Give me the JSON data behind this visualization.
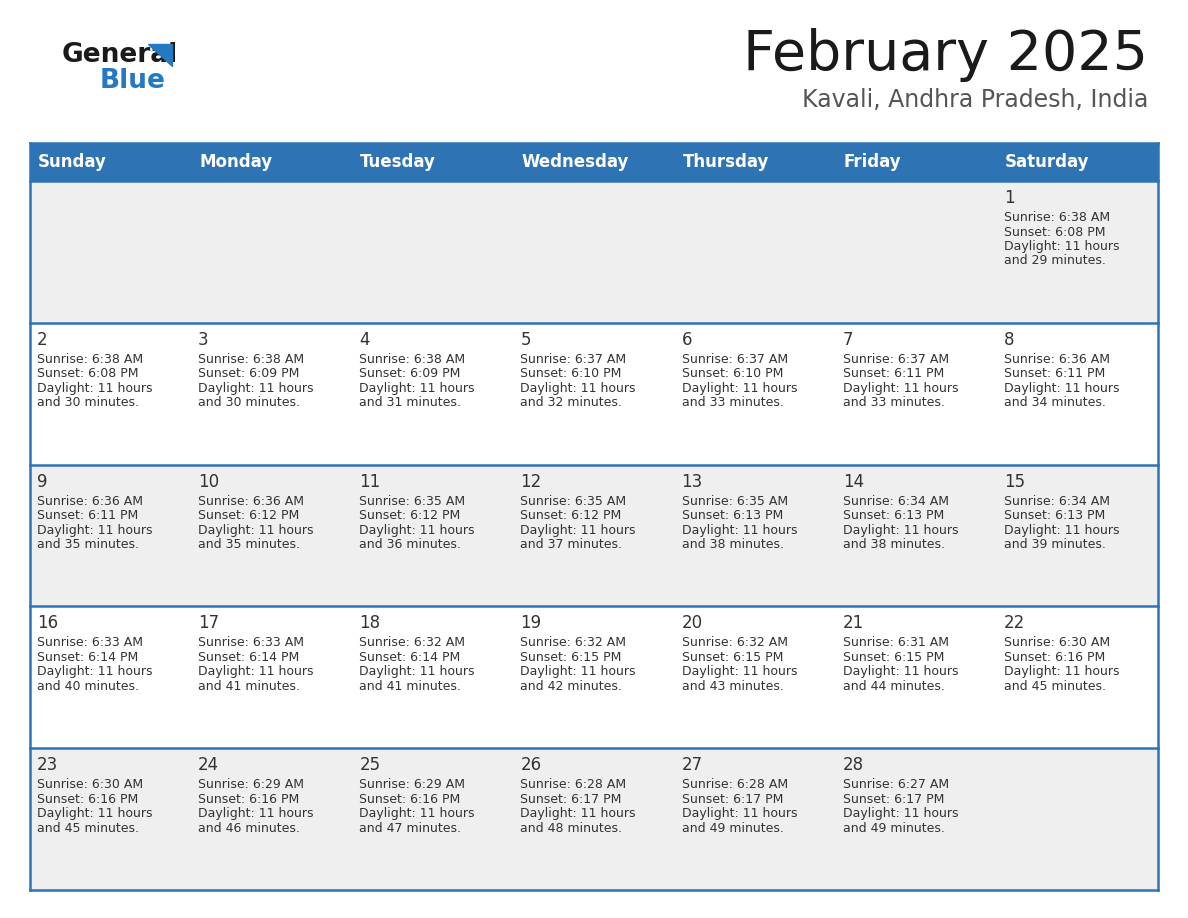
{
  "title": "February 2025",
  "subtitle": "Kavali, Andhra Pradesh, India",
  "header_bg": "#2E74B5",
  "header_text_color": "#FFFFFF",
  "day_names": [
    "Sunday",
    "Monday",
    "Tuesday",
    "Wednesday",
    "Thursday",
    "Friday",
    "Saturday"
  ],
  "cell_bg_odd": "#EFEFEF",
  "cell_bg_even": "#FFFFFF",
  "cell_text_color": "#333333",
  "grid_line_color": "#2E74B5",
  "title_color": "#1a1a1a",
  "subtitle_color": "#555555",
  "logo_general_color": "#1a1a1a",
  "logo_blue_color": "#2479C2",
  "calendar_data": [
    {
      "day": 1,
      "col": 6,
      "row": 0,
      "sunrise": "6:38 AM",
      "sunset": "6:08 PM",
      "daylight": "11 hours and 29 minutes."
    },
    {
      "day": 2,
      "col": 0,
      "row": 1,
      "sunrise": "6:38 AM",
      "sunset": "6:08 PM",
      "daylight": "11 hours and 30 minutes."
    },
    {
      "day": 3,
      "col": 1,
      "row": 1,
      "sunrise": "6:38 AM",
      "sunset": "6:09 PM",
      "daylight": "11 hours and 30 minutes."
    },
    {
      "day": 4,
      "col": 2,
      "row": 1,
      "sunrise": "6:38 AM",
      "sunset": "6:09 PM",
      "daylight": "11 hours and 31 minutes."
    },
    {
      "day": 5,
      "col": 3,
      "row": 1,
      "sunrise": "6:37 AM",
      "sunset": "6:10 PM",
      "daylight": "11 hours and 32 minutes."
    },
    {
      "day": 6,
      "col": 4,
      "row": 1,
      "sunrise": "6:37 AM",
      "sunset": "6:10 PM",
      "daylight": "11 hours and 33 minutes."
    },
    {
      "day": 7,
      "col": 5,
      "row": 1,
      "sunrise": "6:37 AM",
      "sunset": "6:11 PM",
      "daylight": "11 hours and 33 minutes."
    },
    {
      "day": 8,
      "col": 6,
      "row": 1,
      "sunrise": "6:36 AM",
      "sunset": "6:11 PM",
      "daylight": "11 hours and 34 minutes."
    },
    {
      "day": 9,
      "col": 0,
      "row": 2,
      "sunrise": "6:36 AM",
      "sunset": "6:11 PM",
      "daylight": "11 hours and 35 minutes."
    },
    {
      "day": 10,
      "col": 1,
      "row": 2,
      "sunrise": "6:36 AM",
      "sunset": "6:12 PM",
      "daylight": "11 hours and 35 minutes."
    },
    {
      "day": 11,
      "col": 2,
      "row": 2,
      "sunrise": "6:35 AM",
      "sunset": "6:12 PM",
      "daylight": "11 hours and 36 minutes."
    },
    {
      "day": 12,
      "col": 3,
      "row": 2,
      "sunrise": "6:35 AM",
      "sunset": "6:12 PM",
      "daylight": "11 hours and 37 minutes."
    },
    {
      "day": 13,
      "col": 4,
      "row": 2,
      "sunrise": "6:35 AM",
      "sunset": "6:13 PM",
      "daylight": "11 hours and 38 minutes."
    },
    {
      "day": 14,
      "col": 5,
      "row": 2,
      "sunrise": "6:34 AM",
      "sunset": "6:13 PM",
      "daylight": "11 hours and 38 minutes."
    },
    {
      "day": 15,
      "col": 6,
      "row": 2,
      "sunrise": "6:34 AM",
      "sunset": "6:13 PM",
      "daylight": "11 hours and 39 minutes."
    },
    {
      "day": 16,
      "col": 0,
      "row": 3,
      "sunrise": "6:33 AM",
      "sunset": "6:14 PM",
      "daylight": "11 hours and 40 minutes."
    },
    {
      "day": 17,
      "col": 1,
      "row": 3,
      "sunrise": "6:33 AM",
      "sunset": "6:14 PM",
      "daylight": "11 hours and 41 minutes."
    },
    {
      "day": 18,
      "col": 2,
      "row": 3,
      "sunrise": "6:32 AM",
      "sunset": "6:14 PM",
      "daylight": "11 hours and 41 minutes."
    },
    {
      "day": 19,
      "col": 3,
      "row": 3,
      "sunrise": "6:32 AM",
      "sunset": "6:15 PM",
      "daylight": "11 hours and 42 minutes."
    },
    {
      "day": 20,
      "col": 4,
      "row": 3,
      "sunrise": "6:32 AM",
      "sunset": "6:15 PM",
      "daylight": "11 hours and 43 minutes."
    },
    {
      "day": 21,
      "col": 5,
      "row": 3,
      "sunrise": "6:31 AM",
      "sunset": "6:15 PM",
      "daylight": "11 hours and 44 minutes."
    },
    {
      "day": 22,
      "col": 6,
      "row": 3,
      "sunrise": "6:30 AM",
      "sunset": "6:16 PM",
      "daylight": "11 hours and 45 minutes."
    },
    {
      "day": 23,
      "col": 0,
      "row": 4,
      "sunrise": "6:30 AM",
      "sunset": "6:16 PM",
      "daylight": "11 hours and 45 minutes."
    },
    {
      "day": 24,
      "col": 1,
      "row": 4,
      "sunrise": "6:29 AM",
      "sunset": "6:16 PM",
      "daylight": "11 hours and 46 minutes."
    },
    {
      "day": 25,
      "col": 2,
      "row": 4,
      "sunrise": "6:29 AM",
      "sunset": "6:16 PM",
      "daylight": "11 hours and 47 minutes."
    },
    {
      "day": 26,
      "col": 3,
      "row": 4,
      "sunrise": "6:28 AM",
      "sunset": "6:17 PM",
      "daylight": "11 hours and 48 minutes."
    },
    {
      "day": 27,
      "col": 4,
      "row": 4,
      "sunrise": "6:28 AM",
      "sunset": "6:17 PM",
      "daylight": "11 hours and 49 minutes."
    },
    {
      "day": 28,
      "col": 5,
      "row": 4,
      "sunrise": "6:27 AM",
      "sunset": "6:17 PM",
      "daylight": "11 hours and 49 minutes."
    }
  ]
}
